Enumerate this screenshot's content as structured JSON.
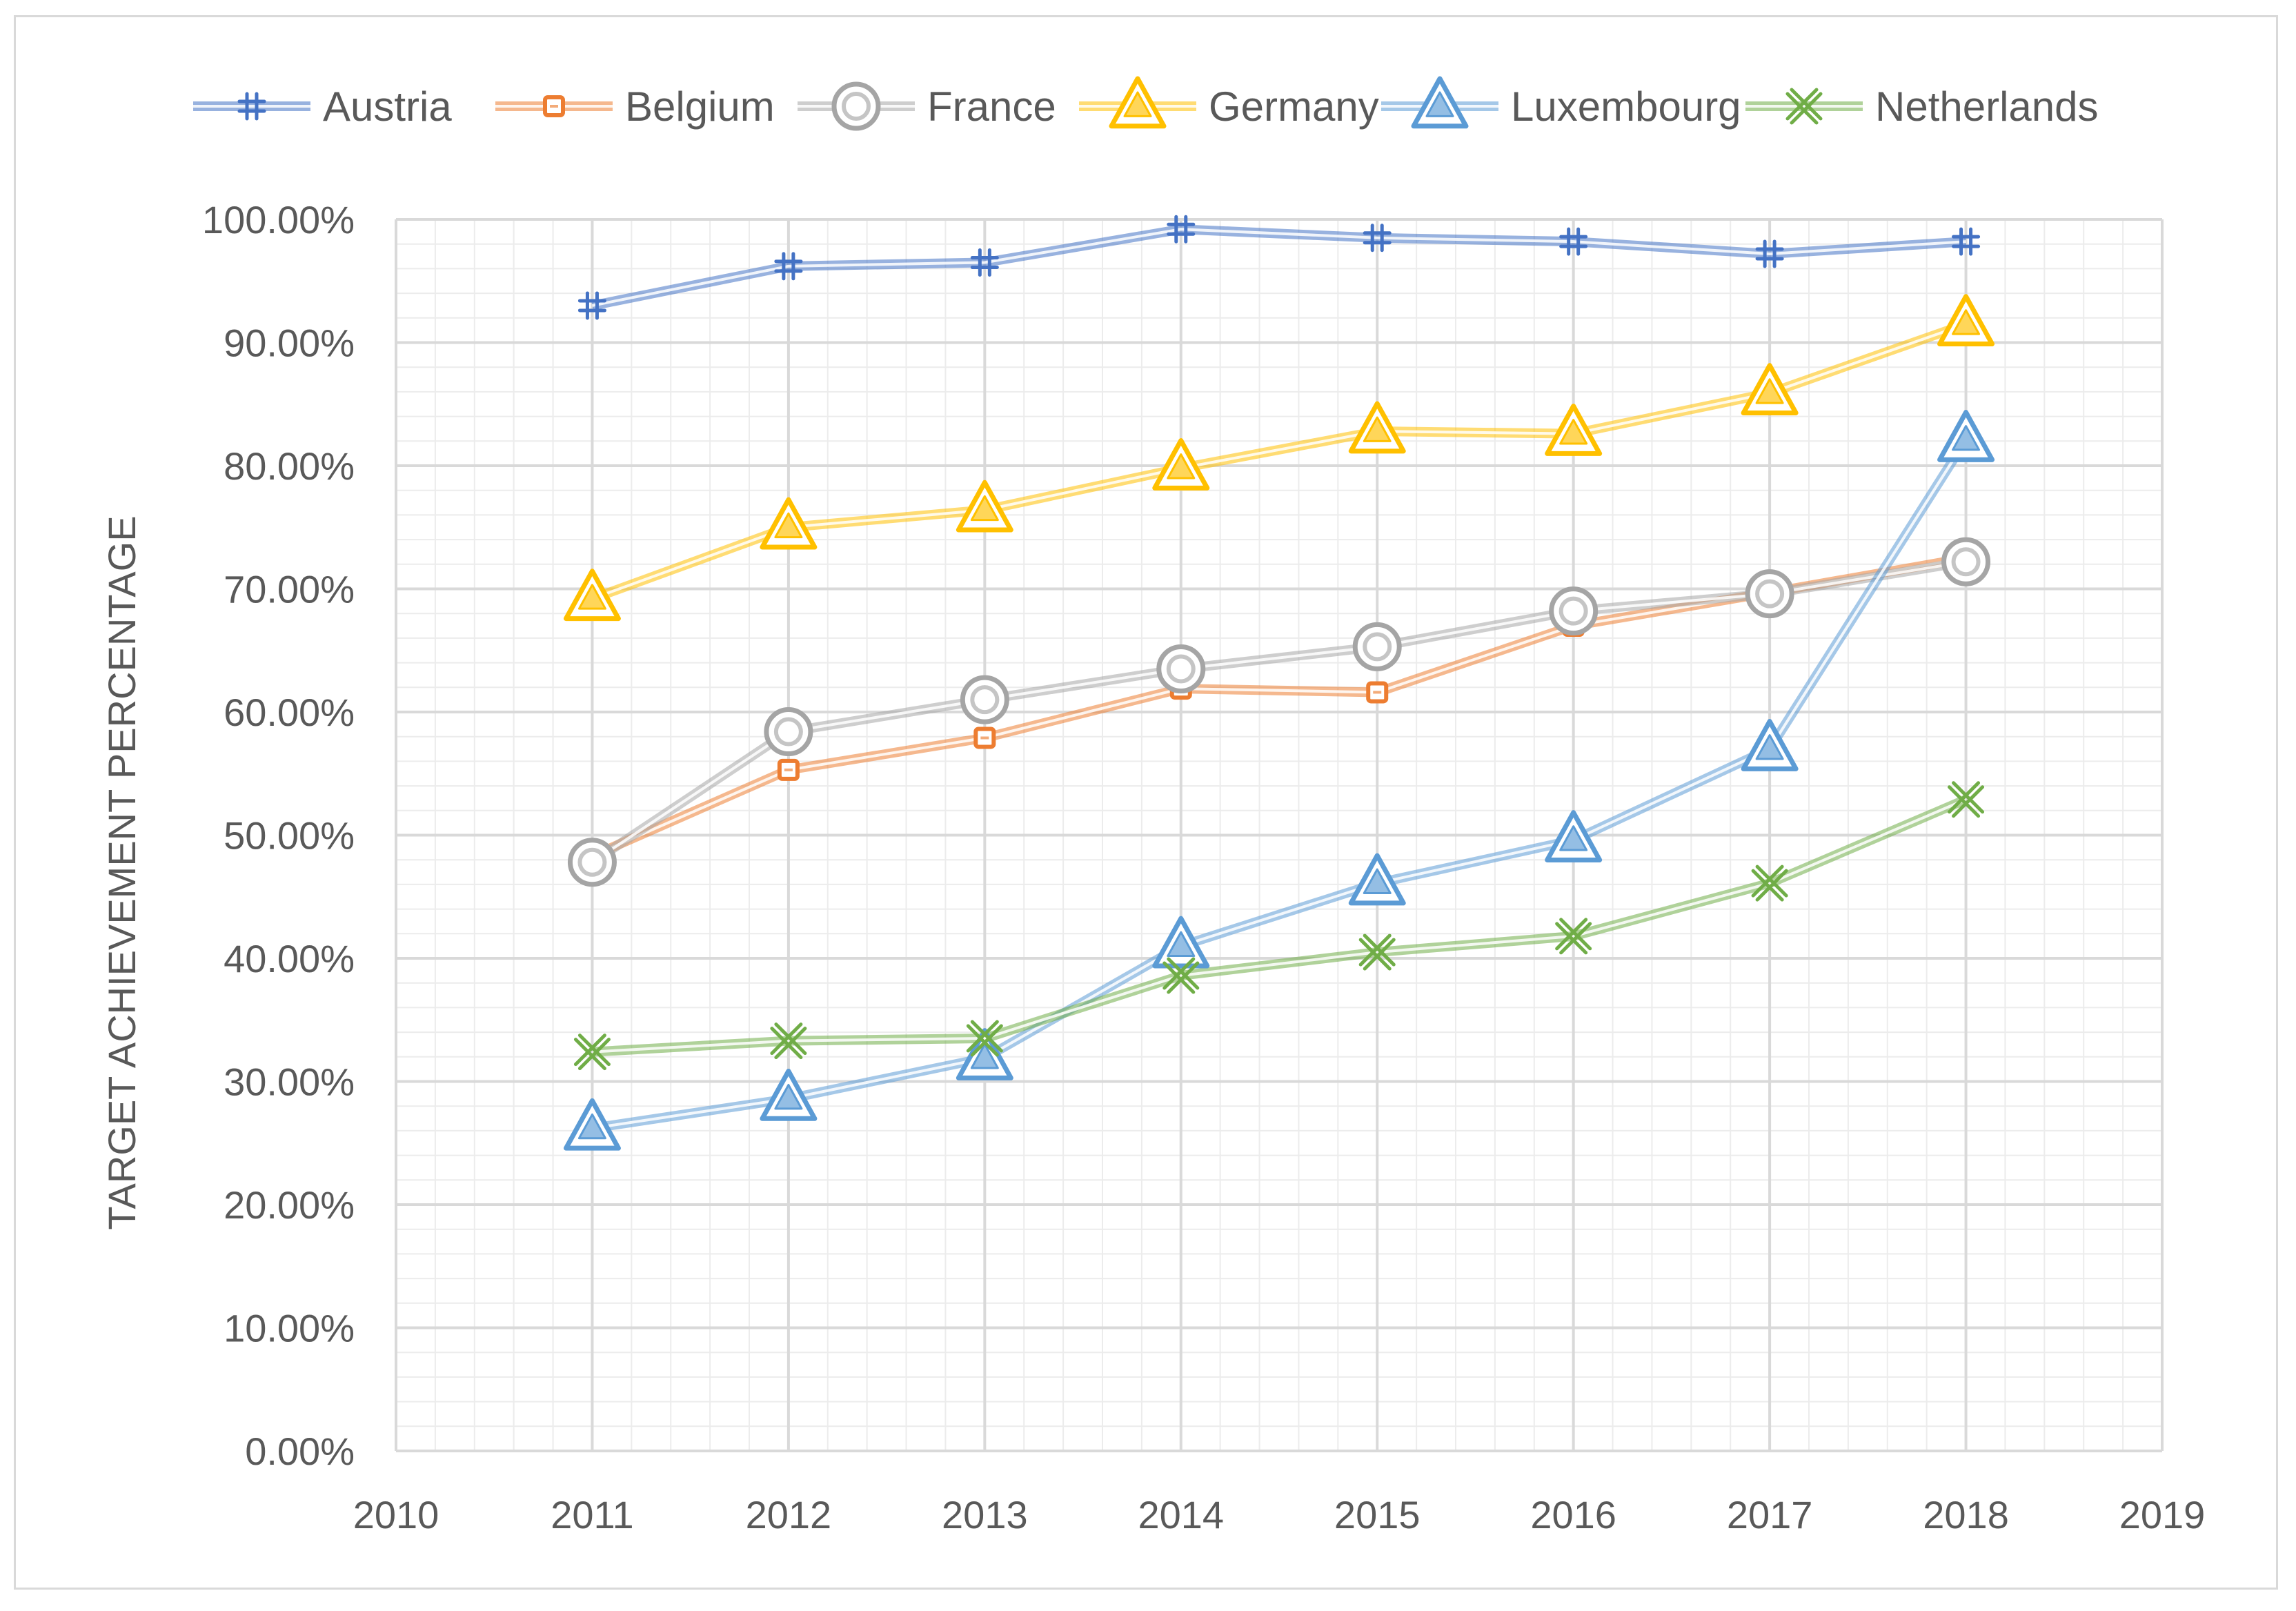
{
  "chart_data": {
    "type": "line",
    "title": "",
    "xlabel": "",
    "ylabel": "TARGET ACHIEVEMENT PERCENTAGE",
    "xlim": [
      2010,
      2019
    ],
    "ylim": [
      0,
      100
    ],
    "x_ticks": [
      "2010",
      "2011",
      "2012",
      "2013",
      "2014",
      "2015",
      "2016",
      "2017",
      "2018",
      "2019"
    ],
    "y_ticks": [
      "0.00%",
      "10.00%",
      "20.00%",
      "30.00%",
      "40.00%",
      "50.00%",
      "60.00%",
      "70.00%",
      "80.00%",
      "90.00%",
      "100.00%"
    ],
    "grid": true,
    "legend_position": "top",
    "x": [
      2011,
      2012,
      2013,
      2014,
      2015,
      2016,
      2017,
      2018
    ],
    "series": [
      {
        "name": "Austria",
        "color": "#4472c4",
        "marker": "plus",
        "values": [
          93.0,
          96.2,
          96.5,
          99.2,
          98.5,
          98.2,
          97.2,
          98.2
        ]
      },
      {
        "name": "Belgium",
        "color": "#ed7d31",
        "marker": "square",
        "values": [
          48.3,
          55.3,
          57.9,
          61.9,
          61.6,
          67.0,
          69.7,
          72.5
        ]
      },
      {
        "name": "France",
        "color": "#a5a5a5",
        "marker": "circle",
        "values": [
          47.8,
          58.4,
          61.0,
          63.5,
          65.3,
          68.2,
          69.6,
          72.2
        ]
      },
      {
        "name": "Germany",
        "color": "#ffc000",
        "marker": "triangle",
        "values": [
          69.2,
          75.0,
          76.4,
          79.8,
          82.8,
          82.6,
          85.9,
          91.5
        ]
      },
      {
        "name": "Luxembourg",
        "color": "#5b9bd5",
        "marker": "triangle",
        "values": [
          26.2,
          28.6,
          31.9,
          41.0,
          46.1,
          49.6,
          57.0,
          82.1
        ]
      },
      {
        "name": "Netherlands",
        "color": "#70ad47",
        "marker": "x",
        "values": [
          32.4,
          33.3,
          33.5,
          38.6,
          40.5,
          41.8,
          46.1,
          52.9
        ]
      }
    ]
  }
}
